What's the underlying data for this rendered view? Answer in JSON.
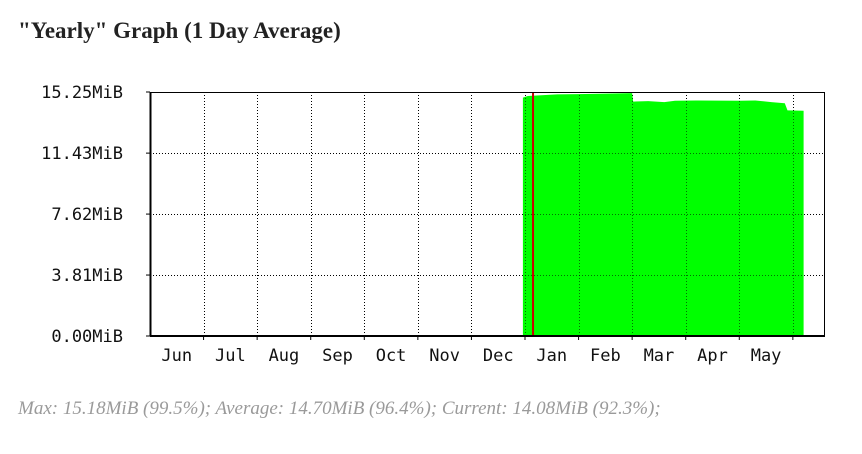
{
  "title": "\"Yearly\" Graph (1 Day Average)",
  "summary": "Max: 15.18MiB (99.5%); Average: 14.70MiB (96.4%); Current: 14.08MiB (92.3%);",
  "colors": {
    "area": "#00ff00",
    "marker": "#cc0000",
    "grid": "#000000",
    "axis": "#000000"
  },
  "chart_data": {
    "type": "area",
    "ylim": [
      0,
      15.25
    ],
    "y_ticks": [
      {
        "value": 0,
        "label": "0.00MiB"
      },
      {
        "value": 3.81,
        "label": "3.81MiB"
      },
      {
        "value": 7.62,
        "label": "7.62MiB"
      },
      {
        "value": 11.43,
        "label": "11.43MiB"
      },
      {
        "value": 15.25,
        "label": "15.25MiB"
      }
    ],
    "xlim": [
      0,
      12.6
    ],
    "x_ticks": [
      {
        "value": 0.5,
        "label": "Jun"
      },
      {
        "value": 1.5,
        "label": "Jul"
      },
      {
        "value": 2.5,
        "label": "Aug"
      },
      {
        "value": 3.5,
        "label": "Sep"
      },
      {
        "value": 4.5,
        "label": "Oct"
      },
      {
        "value": 5.5,
        "label": "Nov"
      },
      {
        "value": 6.5,
        "label": "Dec"
      },
      {
        "value": 7.5,
        "label": "Jan"
      },
      {
        "value": 8.5,
        "label": "Feb"
      },
      {
        "value": 9.5,
        "label": "Mar"
      },
      {
        "value": 10.5,
        "label": "Apr"
      },
      {
        "value": 11.5,
        "label": "May"
      }
    ],
    "x_grid": [
      1,
      2,
      3,
      4,
      5,
      6,
      7,
      8,
      9,
      10,
      11,
      12
    ],
    "marker_x": 7.15,
    "series": [
      {
        "points": [
          [
            6.96,
            0
          ],
          [
            6.96,
            14.9
          ],
          [
            7.05,
            15.0
          ],
          [
            7.3,
            15.05
          ],
          [
            7.6,
            15.1
          ],
          [
            8.0,
            15.12
          ],
          [
            8.5,
            15.15
          ],
          [
            9.0,
            15.18
          ],
          [
            9.02,
            14.65
          ],
          [
            9.3,
            14.68
          ],
          [
            9.6,
            14.62
          ],
          [
            9.8,
            14.7
          ],
          [
            10.2,
            14.72
          ],
          [
            10.6,
            14.71
          ],
          [
            11.0,
            14.7
          ],
          [
            11.3,
            14.72
          ],
          [
            11.6,
            14.62
          ],
          [
            11.85,
            14.55
          ],
          [
            11.9,
            14.1
          ],
          [
            12.2,
            14.08
          ],
          [
            12.2,
            0
          ]
        ]
      }
    ],
    "grid": true
  }
}
